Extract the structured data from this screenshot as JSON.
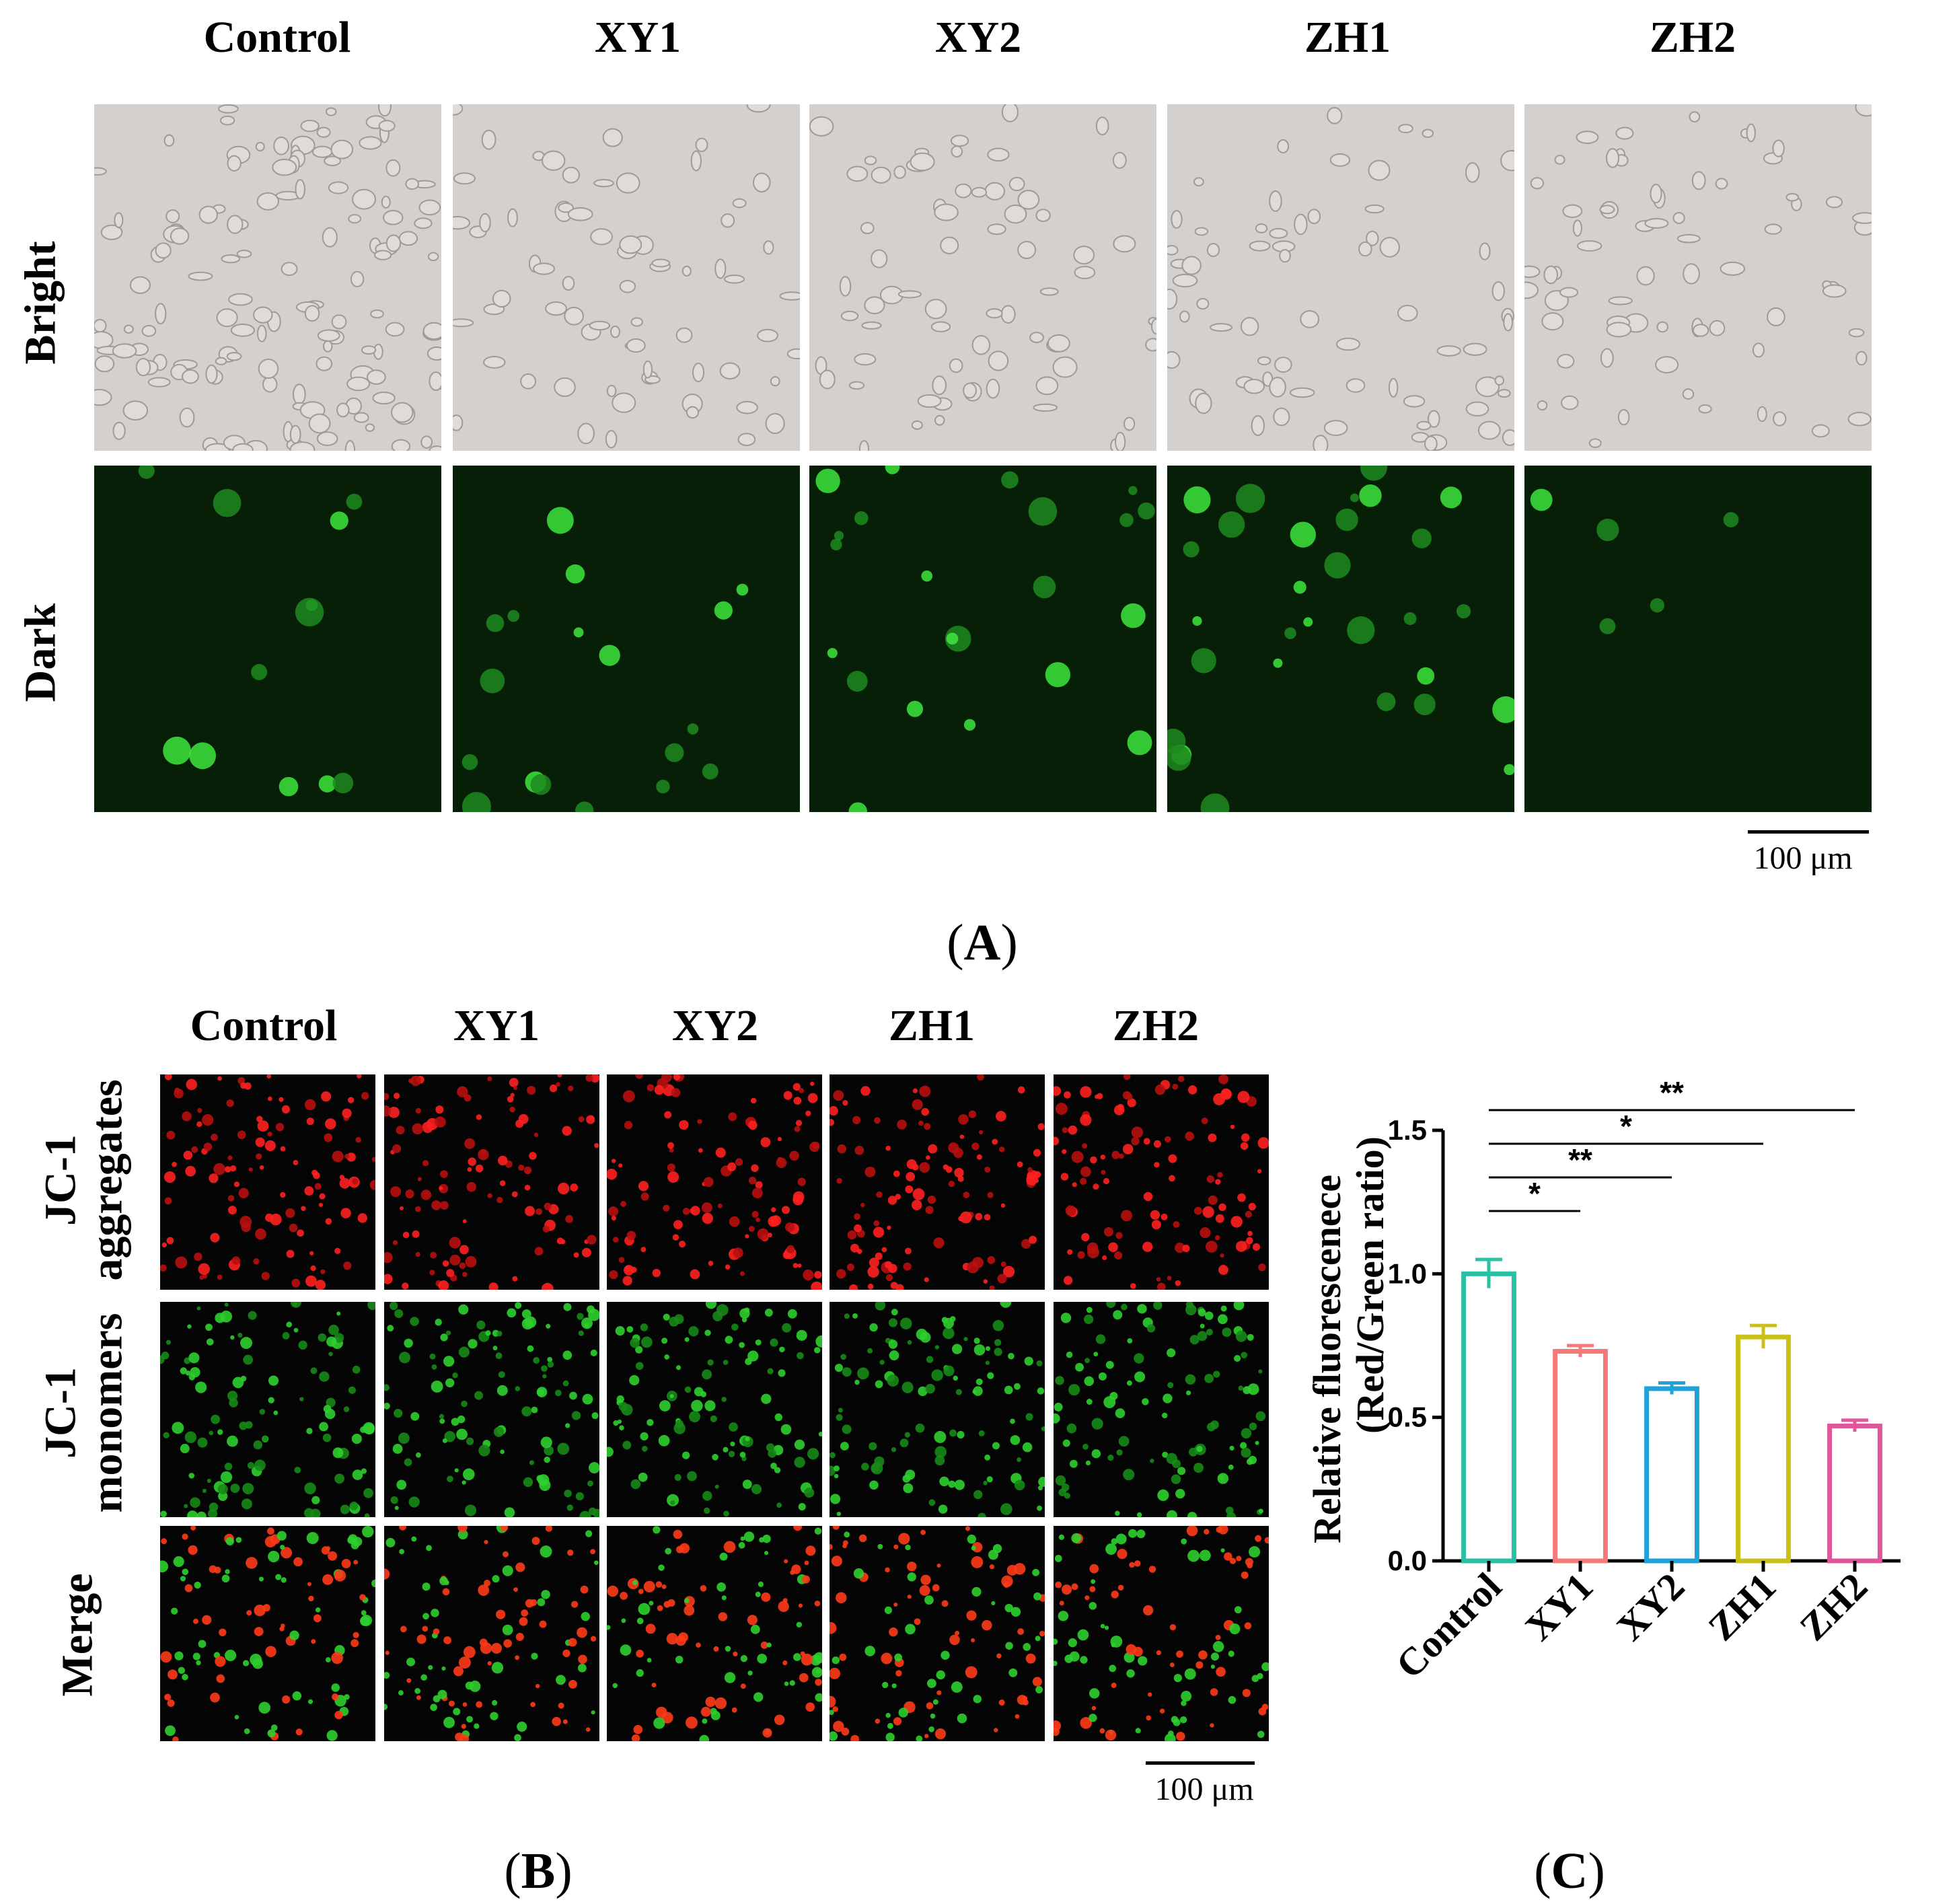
{
  "panel_a": {
    "columns": [
      "Control",
      "XY1",
      "XY2",
      "ZH1",
      "ZH2"
    ],
    "rows": [
      "Bright",
      "Dark"
    ],
    "scale_bar": "100 μm",
    "letter": "A"
  },
  "panel_b": {
    "columns": [
      "Control",
      "XY1",
      "XY2",
      "ZH1",
      "ZH2"
    ],
    "rows": [
      {
        "line1": "JC-1",
        "line2": "aggregates"
      },
      {
        "line1": "JC-1",
        "line2": "monomers"
      },
      {
        "line1": "Merge",
        "line2": ""
      }
    ],
    "scale_bar": "100 μm",
    "letter": "B"
  },
  "panel_c": {
    "letter": "C"
  },
  "chart_data": {
    "type": "bar",
    "title": "",
    "ylabel_line1": "Relative fluorescenece",
    "ylabel_line2": "(Red/Green ratio)",
    "xlabel": "",
    "categories": [
      "Control",
      "XY1",
      "XY2",
      "ZH1",
      "ZH2"
    ],
    "values": [
      1.0,
      0.73,
      0.6,
      0.78,
      0.47
    ],
    "errors": [
      0.05,
      0.02,
      0.02,
      0.04,
      0.02
    ],
    "colors": [
      "#2bbfa4",
      "#f47a7a",
      "#1fa3d6",
      "#c9c01a",
      "#e0569b"
    ],
    "ylim": [
      0,
      1.5
    ],
    "yticks": [
      "0.0",
      "0.5",
      "1.0",
      "1.5"
    ],
    "significance": [
      {
        "from": "Control",
        "to": "XY1",
        "label": "*"
      },
      {
        "from": "Control",
        "to": "XY2",
        "label": "**"
      },
      {
        "from": "Control",
        "to": "ZH1",
        "label": "*"
      },
      {
        "from": "Control",
        "to": "ZH2",
        "label": "**"
      }
    ]
  }
}
